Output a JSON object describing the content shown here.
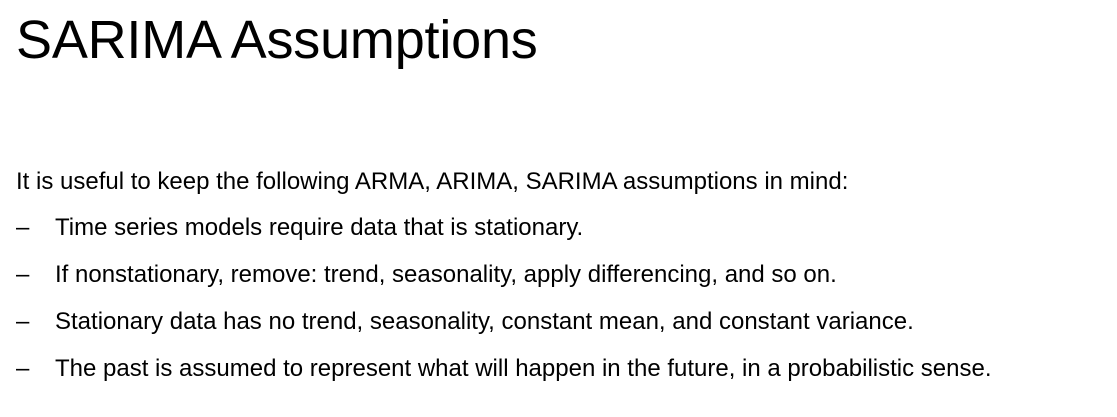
{
  "slide": {
    "title": "SARIMA Assumptions",
    "intro": "It is useful to keep the following ARMA, ARIMA, SARIMA assumptions in mind:",
    "bullet_marker": "–",
    "bullets": [
      "Time series models require data that is stationary.",
      "If nonstationary, remove: trend, seasonality, apply differencing, and so on.",
      "Stationary data has no trend, seasonality, constant mean, and constant variance.",
      "The past is assumed to represent what will happen in the future, in a probabilistic sense."
    ]
  }
}
